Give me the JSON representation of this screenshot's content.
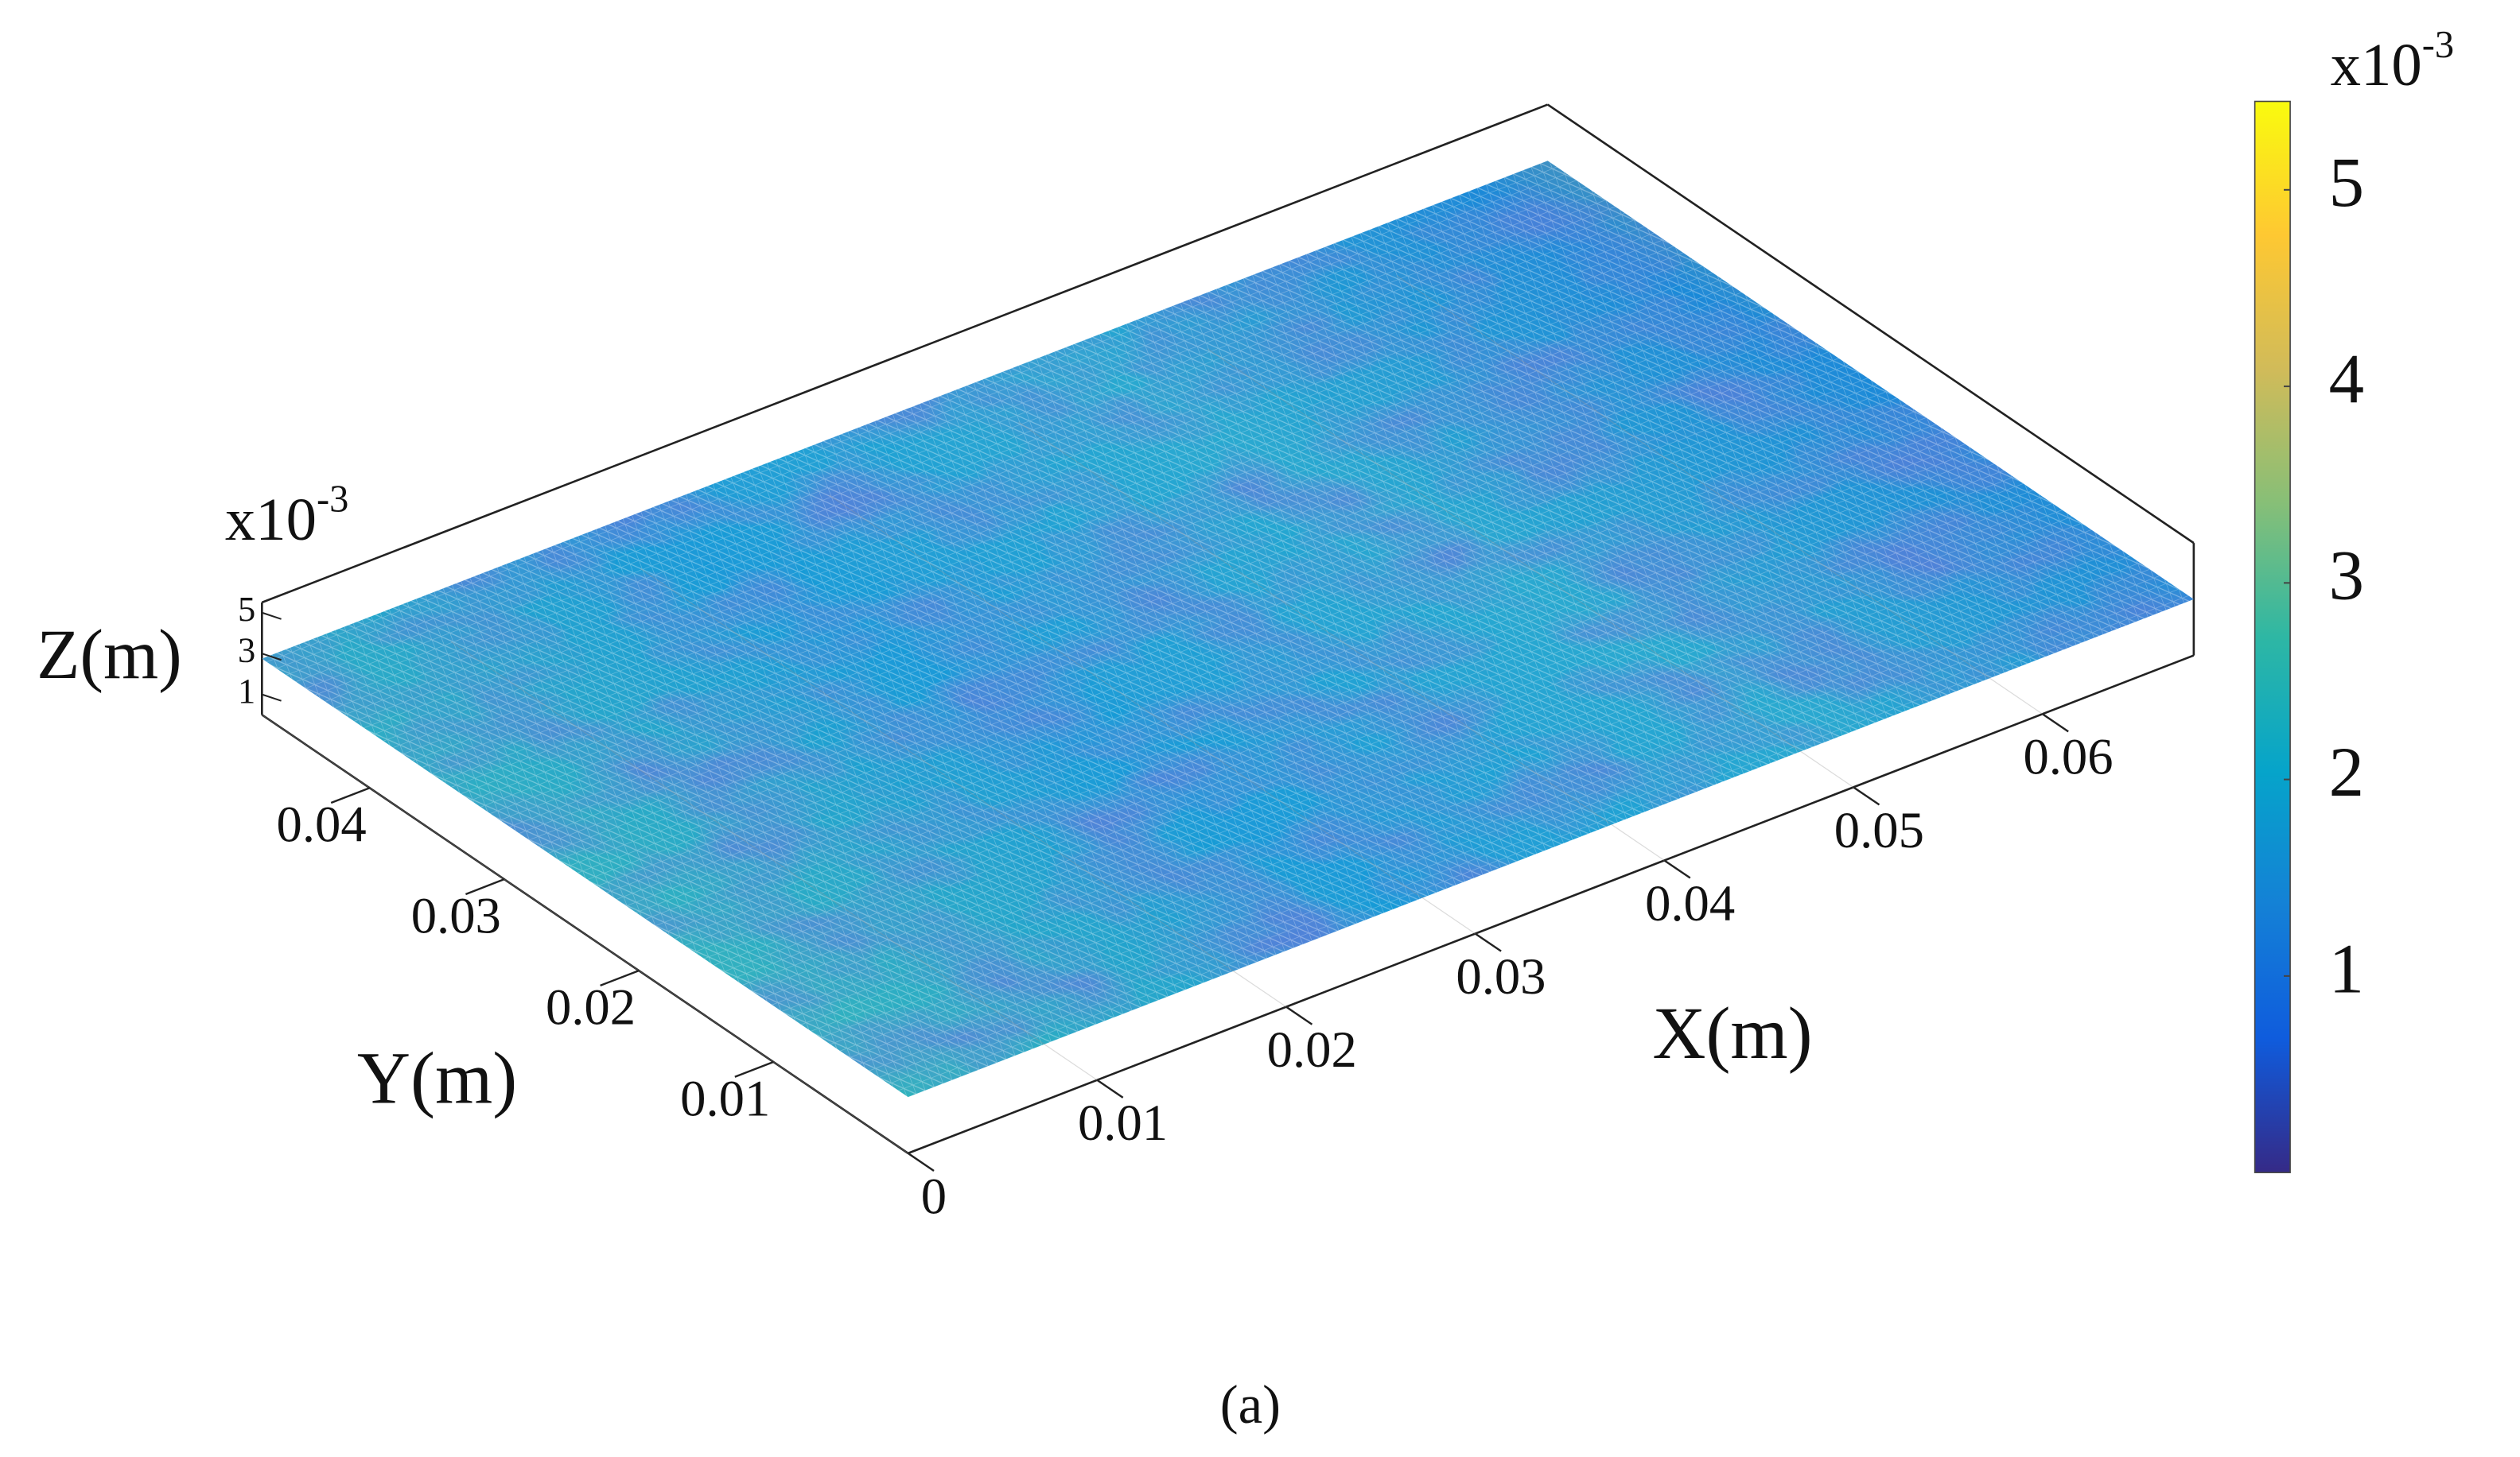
{
  "chart_data": {
    "type": "surface3d",
    "xlabel": "X(m)",
    "ylabel": "Y(m)",
    "zlabel": "Z(m)",
    "zscale_base": "x10",
    "zscale_exp": "-3",
    "colorbar_scale_base": "x10",
    "colorbar_scale_exp": "-3",
    "xlim": [
      0,
      0.068
    ],
    "xticks": [
      0,
      0.01,
      0.02,
      0.03,
      0.04,
      0.05,
      0.06
    ],
    "ylim": [
      0,
      0.048
    ],
    "yticks": [
      0.01,
      0.02,
      0.03,
      0.04
    ],
    "zlim": [
      0,
      5.5
    ],
    "zticks": [
      1,
      3,
      5
    ],
    "clim": [
      0,
      5.45
    ],
    "cticks": [
      1,
      2,
      3,
      4,
      5
    ],
    "colormap": [
      "#352a87",
      "#0f5cdd",
      "#1481d6",
      "#06a4ca",
      "#2eb7a4",
      "#87bf77",
      "#d1bb59",
      "#fec832",
      "#f9fb0e"
    ],
    "caption": "(a)"
  }
}
